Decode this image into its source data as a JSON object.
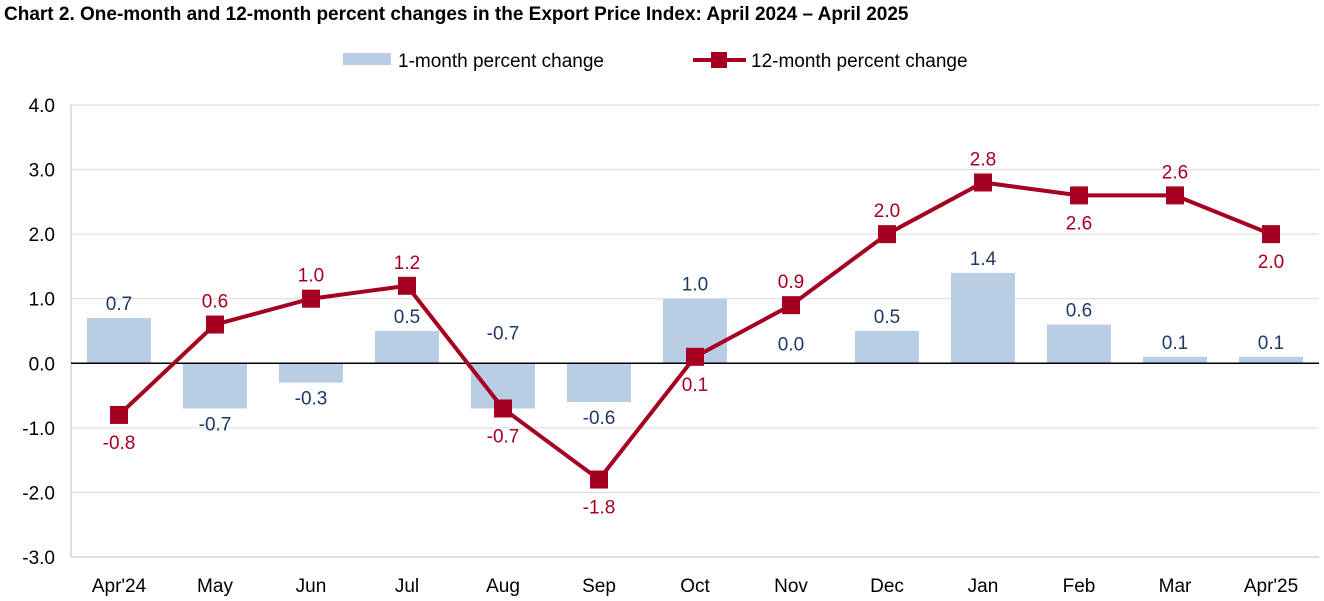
{
  "chart_data": {
    "type": "bar+line",
    "title": "Chart 2. One-month and 12-month percent changes in the Export Price Index: April 2024 – April 2025",
    "categories": [
      "Apr'24",
      "May",
      "Jun",
      "Jul",
      "Aug",
      "Sep",
      "Oct",
      "Nov",
      "Dec",
      "Jan",
      "Feb",
      "Mar",
      "Apr'25"
    ],
    "series": [
      {
        "name": "1-month percent change",
        "type": "bar",
        "color": "#B9CDE5",
        "label_color": "#1F3864",
        "values": [
          0.7,
          -0.7,
          -0.3,
          0.5,
          -0.7,
          -0.6,
          1.0,
          0.0,
          0.5,
          1.4,
          0.6,
          0.1,
          0.1
        ],
        "labels": [
          "0.7",
          "-0.7",
          "-0.3",
          "0.5",
          "-0.7",
          "-0.6",
          "1.0",
          "0.0",
          "0.5",
          "1.4",
          "0.6",
          "0.1",
          "0.1"
        ]
      },
      {
        "name": "12-month percent change",
        "type": "line",
        "color": "#A50021",
        "label_color": "#A50021",
        "values": [
          -0.8,
          0.6,
          1.0,
          1.2,
          -0.7,
          -1.8,
          0.1,
          0.9,
          2.0,
          2.8,
          2.6,
          2.6,
          2.0
        ],
        "labels": [
          "-0.8",
          "0.6",
          "1.0",
          "1.2",
          "-0.7",
          "-1.8",
          "0.1",
          "0.9",
          "2.0",
          "2.8",
          "2.6",
          "2.6",
          "2.0"
        ]
      }
    ],
    "yticks": [
      "4.0",
      "3.0",
      "2.0",
      "1.0",
      "0.0",
      "-1.0",
      "-2.0",
      "-3.0"
    ],
    "ylim": [
      -3,
      4
    ],
    "xlabel": "",
    "ylabel": "",
    "grid": true,
    "legend": "top-center"
  }
}
